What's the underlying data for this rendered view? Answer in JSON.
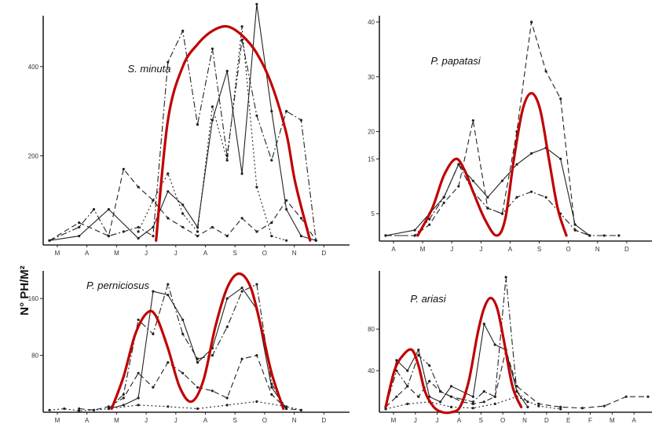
{
  "figure": {
    "ylabel": "N° PH/M²",
    "colors": {
      "data": "#222222",
      "trend": "#c00000"
    }
  },
  "chart_data": [
    {
      "type": "line",
      "title": "S. minuta",
      "months": [
        "M",
        "A",
        "M",
        "J",
        "J",
        "A",
        "S",
        "O",
        "N",
        "D"
      ],
      "x_range": [
        0,
        10
      ],
      "ylim": [
        0,
        500
      ],
      "yticks": [
        200,
        400
      ],
      "series": [
        {
          "name": "solid",
          "style": "solid",
          "x": [
            0,
            1,
            2,
            3,
            3.5,
            4,
            4.5,
            5,
            5.5,
            6,
            6.5,
            7,
            7.5,
            8,
            8.5,
            9
          ],
          "y": [
            10,
            20,
            80,
            15,
            40,
            120,
            90,
            40,
            280,
            390,
            160,
            540,
            300,
            80,
            20,
            10
          ]
        },
        {
          "name": "dash-dot",
          "style": "dashdot",
          "x": [
            0,
            1,
            1.5,
            2,
            2.5,
            3,
            3.5,
            4,
            4.5,
            5,
            5.5,
            6,
            6.5,
            7,
            7.5,
            8,
            8.5,
            9
          ],
          "y": [
            10,
            40,
            80,
            20,
            30,
            40,
            20,
            410,
            480,
            270,
            440,
            200,
            460,
            290,
            190,
            300,
            280,
            10
          ]
        },
        {
          "name": "dashed",
          "style": "dashed",
          "x": [
            0,
            1,
            2,
            2.5,
            3,
            3.5,
            4,
            4.5,
            5,
            5.5,
            6,
            6.5,
            7,
            7.5,
            8,
            8.5,
            9
          ],
          "y": [
            10,
            50,
            20,
            170,
            130,
            100,
            60,
            40,
            20,
            40,
            20,
            60,
            30,
            50,
            100,
            60,
            10
          ]
        },
        {
          "name": "dotted",
          "style": "dotted",
          "x": [
            3,
            3.5,
            4,
            4.5,
            5,
            5.5,
            6,
            6.5,
            7,
            7.5,
            8
          ],
          "y": [
            30,
            100,
            160,
            70,
            30,
            310,
            190,
            490,
            130,
            20,
            10
          ]
        }
      ],
      "trend": {
        "x": [
          3.6,
          4,
          4.5,
          5,
          5.5,
          6,
          6.5,
          7,
          7.5,
          8,
          8.3,
          8.8
        ],
        "y": [
          10,
          280,
          400,
          450,
          480,
          490,
          470,
          430,
          360,
          250,
          140,
          10
        ]
      }
    },
    {
      "type": "line",
      "title": "P. papatasi",
      "months": [
        "A",
        "M",
        "J",
        "J",
        "A",
        "S",
        "O",
        "N",
        "D"
      ],
      "x_range": [
        0,
        9
      ],
      "ylim": [
        0,
        40
      ],
      "yticks": [
        5,
        15,
        20,
        30,
        40
      ],
      "series": [
        {
          "name": "solid",
          "style": "solid",
          "x": [
            0,
            1,
            1.5,
            2,
            2.5,
            3,
            3.5,
            4,
            4.5,
            5,
            5.5,
            6,
            6.5,
            7
          ],
          "y": [
            1,
            2,
            5,
            8,
            14,
            11,
            8,
            11,
            14,
            16,
            17,
            15,
            3,
            1
          ]
        },
        {
          "name": "dashed",
          "style": "dashed",
          "x": [
            0,
            1,
            1.5,
            2,
            2.5,
            3,
            3.5,
            4,
            4.5,
            5,
            5.5,
            6,
            6.5,
            7
          ],
          "y": [
            1,
            1,
            3,
            7,
            10,
            22,
            6,
            5,
            20,
            40,
            31,
            26,
            2,
            1
          ]
        },
        {
          "name": "dash-dot",
          "style": "dashdot",
          "x": [
            0,
            1,
            1.5,
            2,
            2.5,
            3,
            3.5,
            4,
            4.5,
            5,
            5.5,
            6,
            6.5,
            7,
            7.5,
            8
          ],
          "y": [
            1,
            1,
            4,
            8,
            14,
            9,
            6,
            5,
            8,
            9,
            8,
            5,
            2,
            1,
            1,
            1
          ]
        }
      ],
      "trend": {
        "x": [
          1.1,
          1.6,
          2,
          2.4,
          2.7,
          3,
          3.4,
          3.8,
          4.1,
          4.4,
          4.7,
          5,
          5.3,
          5.6,
          5.9,
          6.2
        ],
        "y": [
          1,
          6,
          12,
          15,
          13,
          9,
          4,
          1,
          4,
          15,
          24,
          27,
          24,
          15,
          6,
          1
        ]
      }
    },
    {
      "type": "line",
      "title": "P. perniciosus",
      "months": [
        "M",
        "A",
        "M",
        "J",
        "J",
        "A",
        "S",
        "O",
        "N",
        "D"
      ],
      "x_range": [
        0,
        10
      ],
      "ylim": [
        0,
        190
      ],
      "yticks": [
        80,
        160
      ],
      "series": [
        {
          "name": "solid",
          "style": "solid",
          "x": [
            2,
            2.5,
            3,
            3.5,
            4,
            4.5,
            5,
            5.5,
            6,
            6.5,
            7,
            7.5,
            8
          ],
          "y": [
            5,
            10,
            20,
            170,
            165,
            130,
            70,
            90,
            160,
            175,
            145,
            35,
            5
          ]
        },
        {
          "name": "dash-dot",
          "style": "dashdot",
          "x": [
            2,
            2.5,
            3,
            3.5,
            4,
            4.5,
            5,
            5.5,
            6,
            6.5,
            7,
            7.5,
            8
          ],
          "y": [
            5,
            25,
            130,
            110,
            180,
            110,
            75,
            80,
            120,
            170,
            180,
            40,
            5
          ]
        },
        {
          "name": "dashed",
          "style": "dashed",
          "x": [
            1,
            1.5,
            2,
            2.5,
            3,
            3.5,
            4,
            4.5,
            5,
            5.5,
            6,
            6.5,
            7,
            7.5,
            8,
            8.5
          ],
          "y": [
            5,
            3,
            8,
            20,
            55,
            35,
            70,
            55,
            35,
            30,
            20,
            75,
            80,
            25,
            5,
            3
          ]
        },
        {
          "name": "dotted",
          "style": "dotted",
          "x": [
            0,
            0.5,
            1,
            1.5,
            2,
            3,
            4,
            5,
            6,
            7,
            8,
            8.5
          ],
          "y": [
            3,
            5,
            2,
            3,
            5,
            10,
            8,
            5,
            10,
            15,
            8,
            3
          ]
        }
      ],
      "trend": {
        "x": [
          2.1,
          2.5,
          2.9,
          3.3,
          3.6,
          4,
          4.4,
          4.8,
          5.2,
          5.6,
          6,
          6.4,
          6.8,
          7.2,
          7.5,
          7.9
        ],
        "y": [
          5,
          50,
          110,
          140,
          135,
          90,
          35,
          15,
          45,
          120,
          175,
          195,
          175,
          110,
          55,
          5
        ]
      }
    },
    {
      "type": "line",
      "title": "P. ariasi",
      "months": [
        "M",
        "J",
        "J",
        "A",
        "S",
        "O",
        "N",
        "D",
        "E",
        "F",
        "M",
        "A"
      ],
      "x_range": [
        0,
        12
      ],
      "ylim": [
        0,
        130
      ],
      "yticks": [
        40,
        80
      ],
      "series": [
        {
          "name": "solid",
          "style": "solid",
          "x": [
            0,
            0.5,
            1,
            1.5,
            2,
            2.5,
            3,
            4,
            4.5,
            5,
            5.5,
            6,
            6.5
          ],
          "y": [
            5,
            50,
            40,
            60,
            15,
            10,
            25,
            15,
            85,
            65,
            60,
            20,
            5
          ]
        },
        {
          "name": "dash-dot",
          "style": "dashdot",
          "x": [
            0,
            0.5,
            1,
            1.5,
            2,
            2.5,
            3,
            4,
            4.5,
            5,
            5.5,
            6,
            6.5
          ],
          "y": [
            5,
            40,
            25,
            55,
            45,
            20,
            15,
            10,
            20,
            15,
            130,
            20,
            10
          ]
        },
        {
          "name": "dashed",
          "style": "dashed",
          "x": [
            0,
            0.5,
            1,
            1.5,
            2,
            2.5,
            3,
            3.5,
            4,
            4.5,
            5,
            5.5,
            6,
            7,
            8,
            9,
            10,
            11,
            12
          ],
          "y": [
            5,
            15,
            25,
            15,
            30,
            20,
            15,
            10,
            8,
            10,
            15,
            60,
            25,
            8,
            5,
            4,
            6,
            15,
            15
          ]
        },
        {
          "name": "dotted",
          "style": "dotted",
          "x": [
            0,
            1,
            2,
            3,
            4,
            5,
            6,
            7,
            8
          ],
          "y": [
            3,
            8,
            10,
            5,
            4,
            8,
            15,
            6,
            3
          ]
        }
      ],
      "trend": {
        "x": [
          0,
          0.4,
          0.8,
          1.2,
          1.5,
          1.8,
          2.2,
          2.6,
          3,
          3.4,
          3.8,
          4.2,
          4.5,
          4.8,
          5.1,
          5.4,
          5.8,
          6.2
        ],
        "y": [
          5,
          40,
          55,
          60,
          45,
          20,
          5,
          0,
          0,
          5,
          30,
          75,
          100,
          110,
          100,
          70,
          25,
          5
        ]
      }
    }
  ]
}
